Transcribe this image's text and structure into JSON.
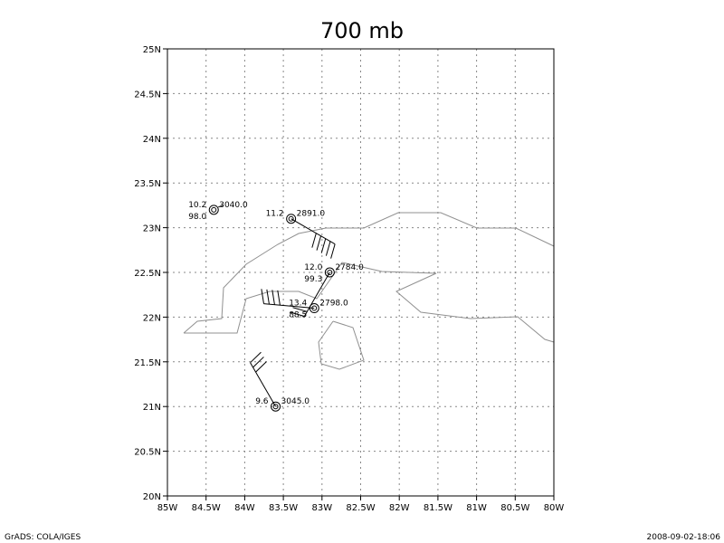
{
  "title": "700 mb",
  "footer": {
    "left": "GrADS: COLA/IGES",
    "right": "2008-09-02-18:06"
  },
  "map": {
    "lon_range": [
      -85,
      -80
    ],
    "lat_range": [
      20,
      25
    ],
    "lon_tick_labels": [
      "85W",
      "84.5W",
      "84W",
      "83.5W",
      "83W",
      "82.5W",
      "82W",
      "81.5W",
      "81W",
      "80.5W",
      "80W"
    ],
    "lat_tick_labels": [
      "20N",
      "20.5N",
      "21N",
      "21.5N",
      "22N",
      "22.5N",
      "23N",
      "23.5N",
      "24N",
      "24.5N",
      "25N"
    ],
    "grid": true,
    "colors": {
      "coast": "#909090",
      "frame": "#000000",
      "grid": "#888888"
    }
  },
  "stations": [
    {
      "id": "stn-1",
      "lon": -84.4,
      "lat": 23.2,
      "ul": "10.2",
      "ur": "3040.0",
      "ll": "98.0",
      "barb_dir": null,
      "barbs": 0
    },
    {
      "id": "stn-2",
      "lon": -83.4,
      "lat": 23.1,
      "ul": "11.2",
      "ur": "2891.0",
      "ll": "",
      "barb_dir": 120,
      "barbs": 5
    },
    {
      "id": "stn-3",
      "lon": -82.9,
      "lat": 22.5,
      "ul": "12.0",
      "ur": "2784.0",
      "ll": "99.3",
      "barb_dir": 210,
      "barbs": 2
    },
    {
      "id": "stn-4",
      "lon": -83.1,
      "lat": 22.1,
      "ul": "13.4",
      "ur": "2798.0",
      "ll": "88.5",
      "barb_dir": 275,
      "barbs": 4
    },
    {
      "id": "stn-5",
      "lon": -83.6,
      "lat": 21.0,
      "ul": "9.6",
      "ur": "3045.0",
      "ll": "",
      "barb_dir": 330,
      "barbs": 3
    }
  ]
}
